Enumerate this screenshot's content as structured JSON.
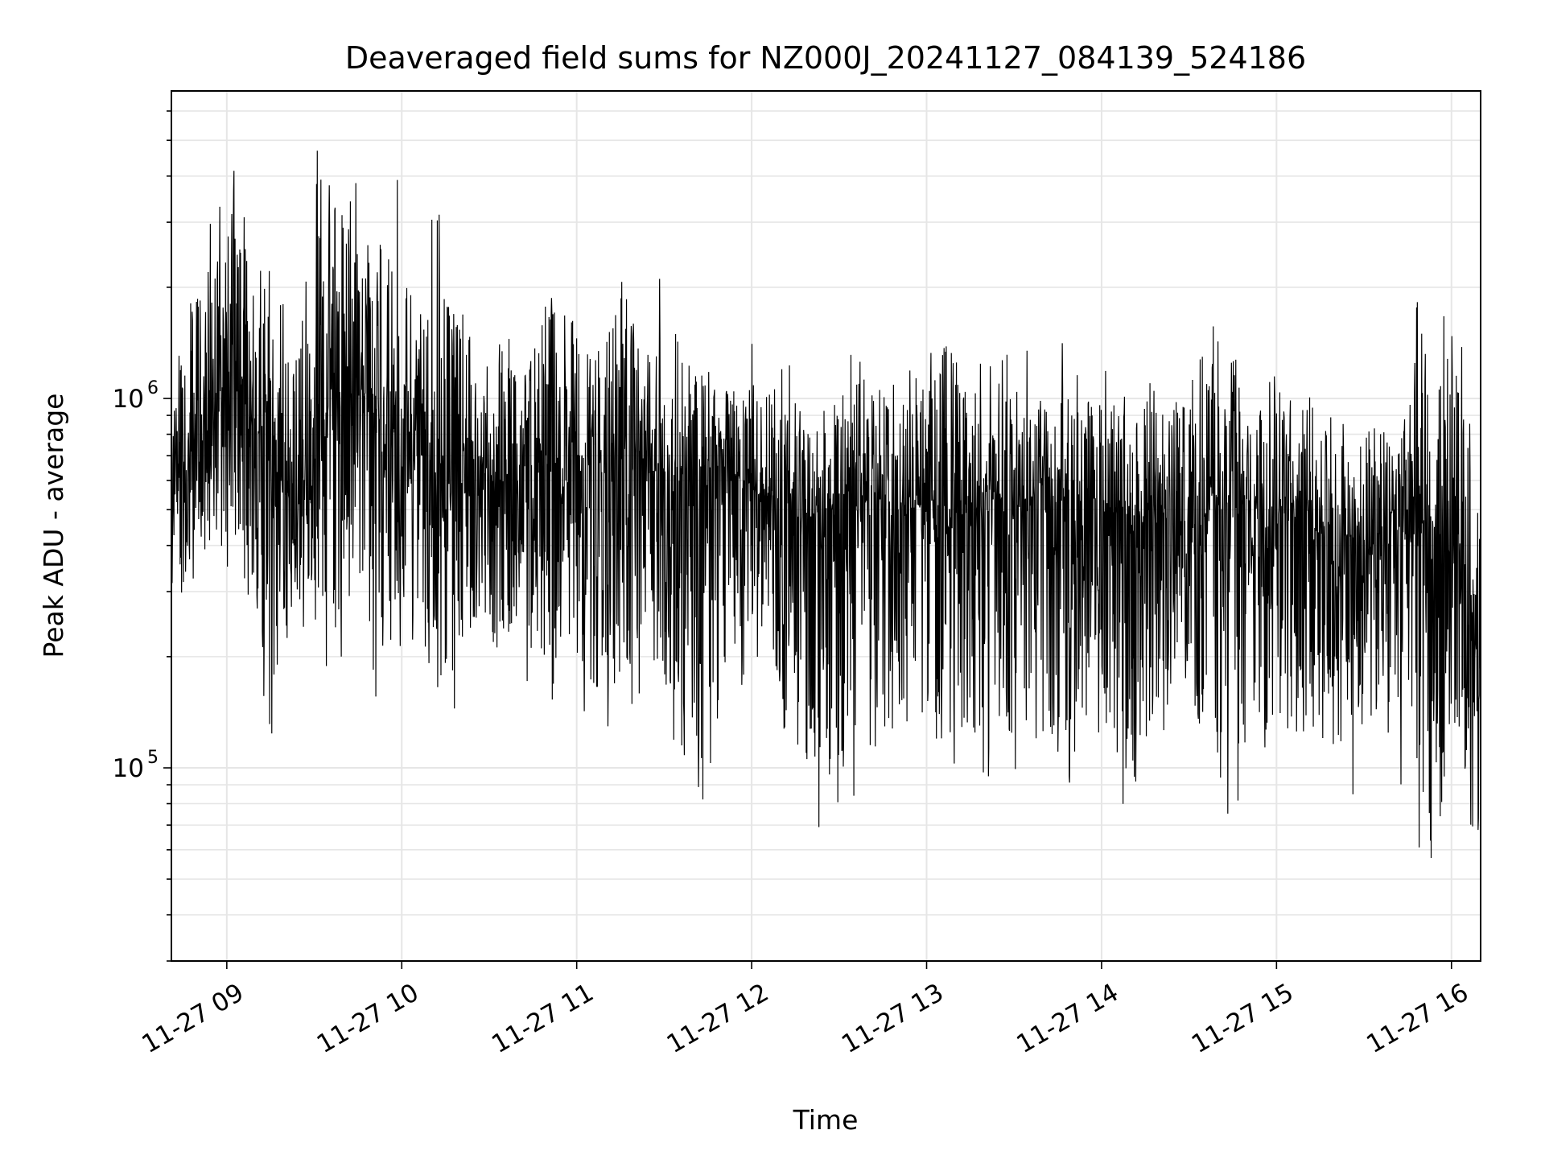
{
  "chart_data": {
    "type": "line",
    "title": "Deaveraged field sums for NZ000J_20241127_084139_524186",
    "xlabel": "Time",
    "ylabel": "Peak ADU - average",
    "yscale": "log",
    "ylim": [
      30000,
      6800000
    ],
    "xlim": [
      "2024-11-27 08:41",
      "2024-11-27 16:10"
    ],
    "x_ticks": [
      {
        "value": "2024-11-27 09:00",
        "label": "11-27 09"
      },
      {
        "value": "2024-11-27 10:00",
        "label": "11-27 10"
      },
      {
        "value": "2024-11-27 11:00",
        "label": "11-27 11"
      },
      {
        "value": "2024-11-27 12:00",
        "label": "11-27 12"
      },
      {
        "value": "2024-11-27 13:00",
        "label": "11-27 13"
      },
      {
        "value": "2024-11-27 14:00",
        "label": "11-27 14"
      },
      {
        "value": "2024-11-27 15:00",
        "label": "11-27 15"
      },
      {
        "value": "2024-11-27 16:00",
        "label": "11-27 16"
      }
    ],
    "y_ticks": [
      {
        "value": 100000,
        "base": "10",
        "exp": "5"
      },
      {
        "value": 1000000,
        "base": "10",
        "exp": "6"
      }
    ],
    "grid": true,
    "line_color": "#000000",
    "series": [
      {
        "x": [
          "2024-11-27 08:41",
          "2024-11-27 08:48",
          "2024-11-27 08:55",
          "2024-11-27 09:02",
          "2024-11-27 09:09",
          "2024-11-27 09:16",
          "2024-11-27 09:23",
          "2024-11-27 09:30",
          "2024-11-27 09:37",
          "2024-11-27 09:44",
          "2024-11-27 09:51",
          "2024-11-27 09:58",
          "2024-11-27 10:05",
          "2024-11-27 10:12",
          "2024-11-27 10:19",
          "2024-11-27 10:26",
          "2024-11-27 10:33",
          "2024-11-27 10:40",
          "2024-11-27 10:47",
          "2024-11-27 10:54",
          "2024-11-27 11:01",
          "2024-11-27 11:08",
          "2024-11-27 11:15",
          "2024-11-27 11:22",
          "2024-11-27 11:29",
          "2024-11-27 11:36",
          "2024-11-27 11:43",
          "2024-11-27 11:50",
          "2024-11-27 11:57",
          "2024-11-27 12:04",
          "2024-11-27 12:11",
          "2024-11-27 12:18",
          "2024-11-27 12:25",
          "2024-11-27 12:32",
          "2024-11-27 12:39",
          "2024-11-27 12:46",
          "2024-11-27 12:53",
          "2024-11-27 13:00",
          "2024-11-27 13:07",
          "2024-11-27 13:14",
          "2024-11-27 13:21",
          "2024-11-27 13:28",
          "2024-11-27 13:35",
          "2024-11-27 13:42",
          "2024-11-27 13:49",
          "2024-11-27 13:56",
          "2024-11-27 14:03",
          "2024-11-27 14:10",
          "2024-11-27 14:17",
          "2024-11-27 14:24",
          "2024-11-27 14:31",
          "2024-11-27 14:38",
          "2024-11-27 14:45",
          "2024-11-27 14:52",
          "2024-11-27 14:59",
          "2024-11-27 15:06",
          "2024-11-27 15:13",
          "2024-11-27 15:20",
          "2024-11-27 15:27",
          "2024-11-27 15:34",
          "2024-11-27 15:41",
          "2024-11-27 15:48",
          "2024-11-27 15:55",
          "2024-11-27 16:02",
          "2024-11-27 16:09"
        ],
        "high": [
          1100000,
          2700000,
          3200000,
          5300000,
          2800000,
          2100000,
          1600000,
          5500000,
          4800000,
          3900000,
          3100000,
          4300000,
          2200000,
          3500000,
          2100000,
          1800000,
          2200000,
          1300000,
          1900000,
          3400000,
          1900000,
          1700000,
          3300000,
          1700000,
          2200000,
          2100000,
          1500000,
          1200000,
          1600000,
          1200000,
          1600000,
          1100000,
          1000000,
          1500000,
          1500000,
          1300000,
          1200000,
          1400000,
          2100000,
          1400000,
          1300000,
          1400000,
          1400000,
          1300000,
          1500000,
          1300000,
          1200000,
          1200000,
          1300000,
          1300000,
          1200000,
          1700000,
          1600000,
          1100000,
          1700000,
          1100000,
          1000000,
          1200000,
          900000,
          1200000,
          800000,
          2000000,
          1600000,
          1900000,
          700000
        ],
        "low": [
          200000,
          250000,
          400000,
          300000,
          150000,
          120000,
          200000,
          250000,
          150000,
          300000,
          100000,
          200000,
          200000,
          110000,
          150000,
          200000,
          150000,
          200000,
          130000,
          150000,
          120000,
          110000,
          130000,
          150000,
          120000,
          100000,
          64000,
          110000,
          150000,
          200000,
          95000,
          85000,
          55000,
          80000,
          75000,
          80000,
          100000,
          90000,
          85000,
          90000,
          90000,
          85000,
          90000,
          85000,
          88000,
          90000,
          85000,
          55000,
          90000,
          100000,
          100000,
          88000,
          65000,
          90000,
          90000,
          100000,
          95000,
          70000,
          85000,
          85000,
          95000,
          37000,
          60000,
          100000,
          42000
        ],
        "median": [
          500000,
          700000,
          1000000,
          1100000,
          900000,
          600000,
          550000,
          700000,
          1100000,
          1100000,
          900000,
          800000,
          700000,
          650000,
          750000,
          700000,
          600000,
          650000,
          650000,
          650000,
          700000,
          650000,
          700000,
          600000,
          650000,
          600000,
          650000,
          650000,
          600000,
          550000,
          550000,
          450000,
          500000,
          500000,
          520000,
          500000,
          500000,
          520000,
          500000,
          480000,
          500000,
          500000,
          480000,
          500000,
          480000,
          500000,
          500000,
          450000,
          500000,
          480000,
          450000,
          500000,
          500000,
          450000,
          450000,
          480000,
          420000,
          430000,
          420000,
          400000,
          420000,
          400000,
          400000,
          350000,
          180000
        ]
      }
    ]
  }
}
